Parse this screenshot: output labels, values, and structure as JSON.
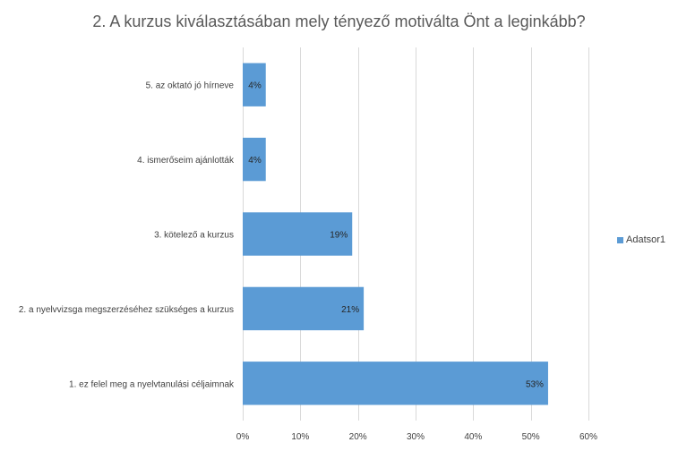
{
  "chart_data": {
    "type": "bar",
    "orientation": "horizontal",
    "title": "2. A kurzus kiválasztásában mely tényező motiválta Önt a leginkább?",
    "categories": [
      "1. ez felel meg a nyelvtanulási céljaimnak",
      "2. a nyelvvizsga megszerzéséhez szükséges a kurzus",
      "3. kötelező a kurzus",
      "4. ismerőseim ajánlották",
      "5. az oktató jó hírneve"
    ],
    "series": [
      {
        "name": "Adatsor1",
        "values": [
          53,
          21,
          19,
          4,
          4
        ],
        "data_labels": [
          "53%",
          "21%",
          "19%",
          "4%",
          "4%"
        ],
        "color": "#5B9BD5"
      }
    ],
    "xlim": [
      0,
      60
    ],
    "xticks": [
      0,
      10,
      20,
      30,
      40,
      50,
      60
    ],
    "xtick_labels": [
      "0%",
      "10%",
      "20%",
      "30%",
      "40%",
      "50%",
      "60%"
    ],
    "grid": true,
    "legend_position": "right",
    "gridline_color": "#D9D9D9"
  }
}
